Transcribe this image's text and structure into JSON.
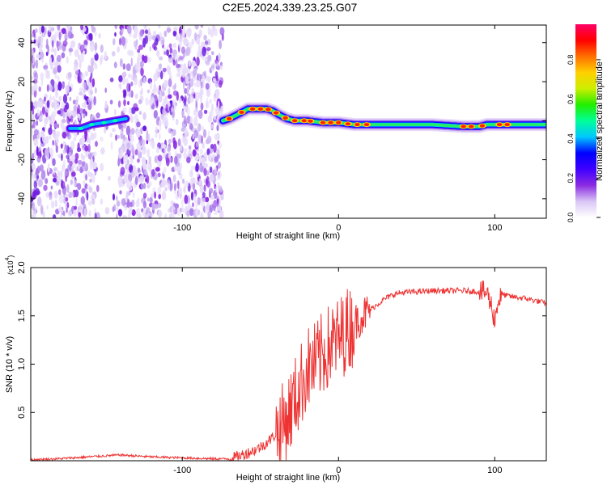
{
  "page_title": "C2E5.2024.339.23.25.G07",
  "chart_data": [
    {
      "type": "heatmap",
      "xlabel": "Height of straight line (km)",
      "ylabel": "Frequency (Hz)",
      "xlim": [
        -197,
        133
      ],
      "ylim": [
        -50,
        49
      ],
      "x_ticks": [
        -100,
        0,
        100
      ],
      "x_tick_labels": [
        "-100",
        "0",
        "100"
      ],
      "y_ticks": [
        -40,
        -20,
        0,
        20,
        40
      ],
      "y_tick_labels": [
        "-40",
        "-20",
        "0",
        "20",
        "40"
      ],
      "ridge": {
        "x": [
          -172,
          -165,
          -158,
          -150,
          -143,
          -136,
          -74,
          -70,
          -65,
          -58,
          -52,
          -46,
          -42,
          -38,
          -33,
          -28,
          -20,
          -10,
          0,
          10,
          20,
          40,
          60,
          80,
          90,
          95,
          100,
          110,
          120,
          133
        ],
        "y": [
          -4,
          -4,
          -2,
          -1,
          0,
          1,
          0,
          1,
          3,
          6,
          6,
          6,
          5,
          3,
          1,
          0,
          0,
          -1,
          -1,
          -2,
          -2,
          -2,
          -2,
          -3,
          -3,
          -2,
          -2,
          -2,
          -2,
          -2
        ]
      },
      "noise_region_x": [
        -197,
        -74
      ],
      "colorbar": {
        "label": "Normalized spectral amplitude",
        "range": [
          0,
          0.98
        ],
        "ticks": [
          0.0,
          0.2,
          0.4,
          0.6,
          0.8
        ],
        "tick_labels": [
          "0.0",
          "0.2",
          "0.4",
          "0.6",
          "0.8"
        ],
        "colors": [
          "#ffffff",
          "#d9c6f5",
          "#8a2be2",
          "#3f00ff",
          "#0000ff",
          "#00c8ff",
          "#00ff99",
          "#22ee00",
          "#ccee00",
          "#ffd000",
          "#ff7000",
          "#ff0000",
          "#ff0066"
        ]
      }
    },
    {
      "type": "line",
      "xlabel": "Height of straight line (km)",
      "ylabel": "SNR (10 * v/v)",
      "y_multiplier": "(x10",
      "y_multiplier_exp": "4",
      "y_multiplier_close": ")",
      "xlim": [
        -197,
        133
      ],
      "ylim": [
        0,
        2.0
      ],
      "x_ticks": [
        -100,
        0,
        100
      ],
      "x_tick_labels": [
        "-100",
        "0",
        "100"
      ],
      "y_ticks": [
        0.5,
        1.0,
        1.5,
        2.0
      ],
      "y_tick_labels": [
        "0.5",
        "1.0",
        "1.5",
        "2.0"
      ],
      "color": "#ee3333",
      "series": [
        {
          "x": [
            -197,
            -180,
            -160,
            -140,
            -120,
            -100,
            -80,
            -70,
            -65,
            -60,
            -55,
            -50,
            -45,
            -40,
            -35,
            -30,
            -25,
            -20,
            -15,
            -10,
            -5,
            0,
            5,
            10,
            15,
            20,
            25,
            30,
            35,
            40,
            50,
            60,
            70,
            80,
            90,
            95,
            98,
            100,
            102,
            105,
            110,
            120,
            133
          ],
          "y": [
            0.01,
            0.02,
            0.04,
            0.06,
            0.04,
            0.03,
            0.02,
            0.02,
            0.04,
            0.07,
            0.1,
            0.14,
            0.2,
            0.28,
            0.38,
            0.55,
            0.75,
            0.95,
            1.0,
            1.1,
            1.2,
            1.25,
            1.35,
            1.42,
            1.5,
            1.56,
            1.62,
            1.68,
            1.72,
            1.74,
            1.75,
            1.76,
            1.76,
            1.76,
            1.75,
            1.74,
            1.6,
            1.45,
            1.65,
            1.72,
            1.7,
            1.68,
            1.63
          ]
        }
      ]
    }
  ]
}
